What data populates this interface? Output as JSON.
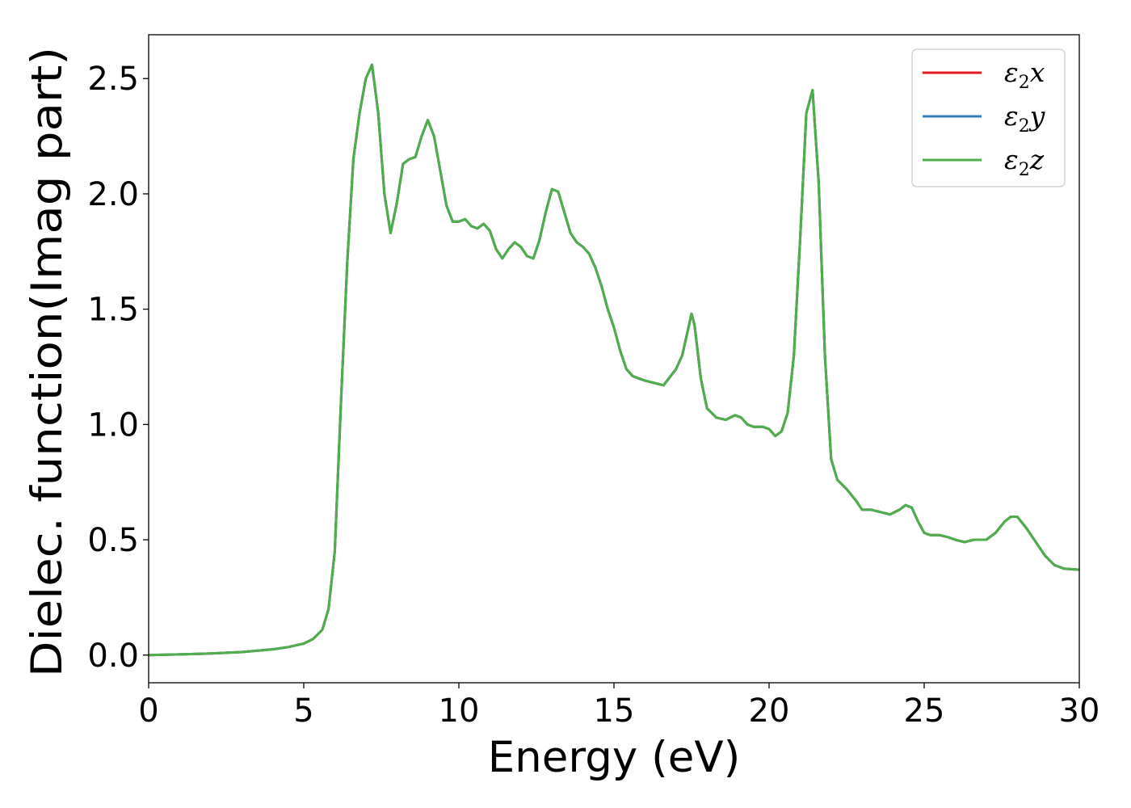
{
  "chart_data": {
    "type": "line",
    "title": "",
    "xlabel": "Energy (eV)",
    "ylabel": "Dielec. function(Imag part)",
    "xlim": [
      0,
      30
    ],
    "ylim": [
      -0.12,
      2.69
    ],
    "xticks": [
      0,
      5,
      10,
      15,
      20,
      25,
      30
    ],
    "xtick_labels": [
      "0",
      "5",
      "10",
      "15",
      "20",
      "25",
      "30"
    ],
    "yticks": [
      0.0,
      0.5,
      1.0,
      1.5,
      2.0,
      2.5
    ],
    "ytick_labels": [
      "0.0",
      "0.5",
      "1.0",
      "1.5",
      "2.0",
      "2.5"
    ],
    "grid": false,
    "legend_position": "top-right",
    "x": [
      0,
      1,
      2,
      3,
      4,
      4.5,
      5,
      5.3,
      5.6,
      5.8,
      6.0,
      6.2,
      6.4,
      6.6,
      6.8,
      7.0,
      7.2,
      7.4,
      7.6,
      7.8,
      8.0,
      8.2,
      8.4,
      8.6,
      8.8,
      9.0,
      9.2,
      9.4,
      9.6,
      9.8,
      10.0,
      10.2,
      10.4,
      10.6,
      10.8,
      11.0,
      11.2,
      11.4,
      11.6,
      11.8,
      12.0,
      12.2,
      12.4,
      12.6,
      12.8,
      13.0,
      13.2,
      13.4,
      13.6,
      13.8,
      14.0,
      14.2,
      14.4,
      14.6,
      14.8,
      15.0,
      15.2,
      15.4,
      15.6,
      15.8,
      16.0,
      16.3,
      16.6,
      17.0,
      17.2,
      17.4,
      17.5,
      17.6,
      17.8,
      18.0,
      18.3,
      18.6,
      18.9,
      19.1,
      19.3,
      19.5,
      19.8,
      20.0,
      20.2,
      20.4,
      20.6,
      20.8,
      21.0,
      21.2,
      21.4,
      21.6,
      21.8,
      22.0,
      22.2,
      22.5,
      22.8,
      23.0,
      23.3,
      23.6,
      23.9,
      24.2,
      24.4,
      24.6,
      24.8,
      25.0,
      25.2,
      25.5,
      25.8,
      26.0,
      26.3,
      26.6,
      27.0,
      27.3,
      27.6,
      27.8,
      28.0,
      28.3,
      28.6,
      28.9,
      29.2,
      29.5,
      30.0
    ],
    "series": [
      {
        "name": "x",
        "color": "#e41a1c",
        "values": [
          0.0,
          0.003,
          0.007,
          0.013,
          0.025,
          0.035,
          0.05,
          0.07,
          0.11,
          0.2,
          0.45,
          1.1,
          1.7,
          2.15,
          2.35,
          2.5,
          2.56,
          2.35,
          2.0,
          1.83,
          1.96,
          2.13,
          2.15,
          2.16,
          2.25,
          2.32,
          2.25,
          2.1,
          1.95,
          1.88,
          1.88,
          1.89,
          1.86,
          1.85,
          1.87,
          1.84,
          1.76,
          1.72,
          1.76,
          1.79,
          1.77,
          1.73,
          1.72,
          1.8,
          1.92,
          2.02,
          2.01,
          1.92,
          1.83,
          1.79,
          1.77,
          1.74,
          1.68,
          1.6,
          1.5,
          1.42,
          1.32,
          1.24,
          1.21,
          1.2,
          1.19,
          1.18,
          1.17,
          1.24,
          1.3,
          1.42,
          1.48,
          1.43,
          1.2,
          1.07,
          1.03,
          1.02,
          1.04,
          1.03,
          1.0,
          0.99,
          0.99,
          0.98,
          0.95,
          0.97,
          1.05,
          1.3,
          1.8,
          2.35,
          2.45,
          2.05,
          1.3,
          0.85,
          0.76,
          0.72,
          0.67,
          0.63,
          0.63,
          0.62,
          0.61,
          0.63,
          0.65,
          0.64,
          0.58,
          0.53,
          0.52,
          0.52,
          0.51,
          0.5,
          0.49,
          0.5,
          0.5,
          0.53,
          0.58,
          0.6,
          0.6,
          0.55,
          0.49,
          0.43,
          0.39,
          0.375,
          0.37
        ]
      },
      {
        "name": "y",
        "color": "#377eb8",
        "values": [
          0.0,
          0.003,
          0.007,
          0.013,
          0.025,
          0.035,
          0.05,
          0.07,
          0.11,
          0.2,
          0.45,
          1.1,
          1.7,
          2.15,
          2.35,
          2.5,
          2.56,
          2.35,
          2.0,
          1.83,
          1.96,
          2.13,
          2.15,
          2.16,
          2.25,
          2.32,
          2.25,
          2.1,
          1.95,
          1.88,
          1.88,
          1.89,
          1.86,
          1.85,
          1.87,
          1.84,
          1.76,
          1.72,
          1.76,
          1.79,
          1.77,
          1.73,
          1.72,
          1.8,
          1.92,
          2.02,
          2.01,
          1.92,
          1.83,
          1.79,
          1.77,
          1.74,
          1.68,
          1.6,
          1.5,
          1.42,
          1.32,
          1.24,
          1.21,
          1.2,
          1.19,
          1.18,
          1.17,
          1.24,
          1.3,
          1.42,
          1.48,
          1.43,
          1.2,
          1.07,
          1.03,
          1.02,
          1.04,
          1.03,
          1.0,
          0.99,
          0.99,
          0.98,
          0.95,
          0.97,
          1.05,
          1.3,
          1.8,
          2.35,
          2.45,
          2.05,
          1.3,
          0.85,
          0.76,
          0.72,
          0.67,
          0.63,
          0.63,
          0.62,
          0.61,
          0.63,
          0.65,
          0.64,
          0.58,
          0.53,
          0.52,
          0.52,
          0.51,
          0.5,
          0.49,
          0.5,
          0.5,
          0.53,
          0.58,
          0.6,
          0.6,
          0.55,
          0.49,
          0.43,
          0.39,
          0.375,
          0.37
        ]
      },
      {
        "name": "z",
        "color": "#4daf4a",
        "values": [
          0.0,
          0.003,
          0.007,
          0.013,
          0.025,
          0.035,
          0.05,
          0.07,
          0.11,
          0.2,
          0.45,
          1.1,
          1.7,
          2.15,
          2.35,
          2.5,
          2.56,
          2.35,
          2.0,
          1.83,
          1.96,
          2.13,
          2.15,
          2.16,
          2.25,
          2.32,
          2.25,
          2.1,
          1.95,
          1.88,
          1.88,
          1.89,
          1.86,
          1.85,
          1.87,
          1.84,
          1.76,
          1.72,
          1.76,
          1.79,
          1.77,
          1.73,
          1.72,
          1.8,
          1.92,
          2.02,
          2.01,
          1.92,
          1.83,
          1.79,
          1.77,
          1.74,
          1.68,
          1.6,
          1.5,
          1.42,
          1.32,
          1.24,
          1.21,
          1.2,
          1.19,
          1.18,
          1.17,
          1.24,
          1.3,
          1.42,
          1.48,
          1.43,
          1.2,
          1.07,
          1.03,
          1.02,
          1.04,
          1.03,
          1.0,
          0.99,
          0.99,
          0.98,
          0.95,
          0.97,
          1.05,
          1.3,
          1.8,
          2.35,
          2.45,
          2.05,
          1.3,
          0.85,
          0.76,
          0.72,
          0.67,
          0.63,
          0.63,
          0.62,
          0.61,
          0.63,
          0.65,
          0.64,
          0.58,
          0.53,
          0.52,
          0.52,
          0.51,
          0.5,
          0.49,
          0.5,
          0.5,
          0.53,
          0.58,
          0.6,
          0.6,
          0.55,
          0.49,
          0.43,
          0.39,
          0.375,
          0.37
        ]
      }
    ],
    "legend": [
      {
        "symbol": "ε",
        "sub": "2",
        "var": "x",
        "color": "#e41a1c"
      },
      {
        "symbol": "ε",
        "sub": "2",
        "var": "y",
        "color": "#377eb8"
      },
      {
        "symbol": "ε",
        "sub": "2",
        "var": "z",
        "color": "#4daf4a"
      }
    ]
  }
}
